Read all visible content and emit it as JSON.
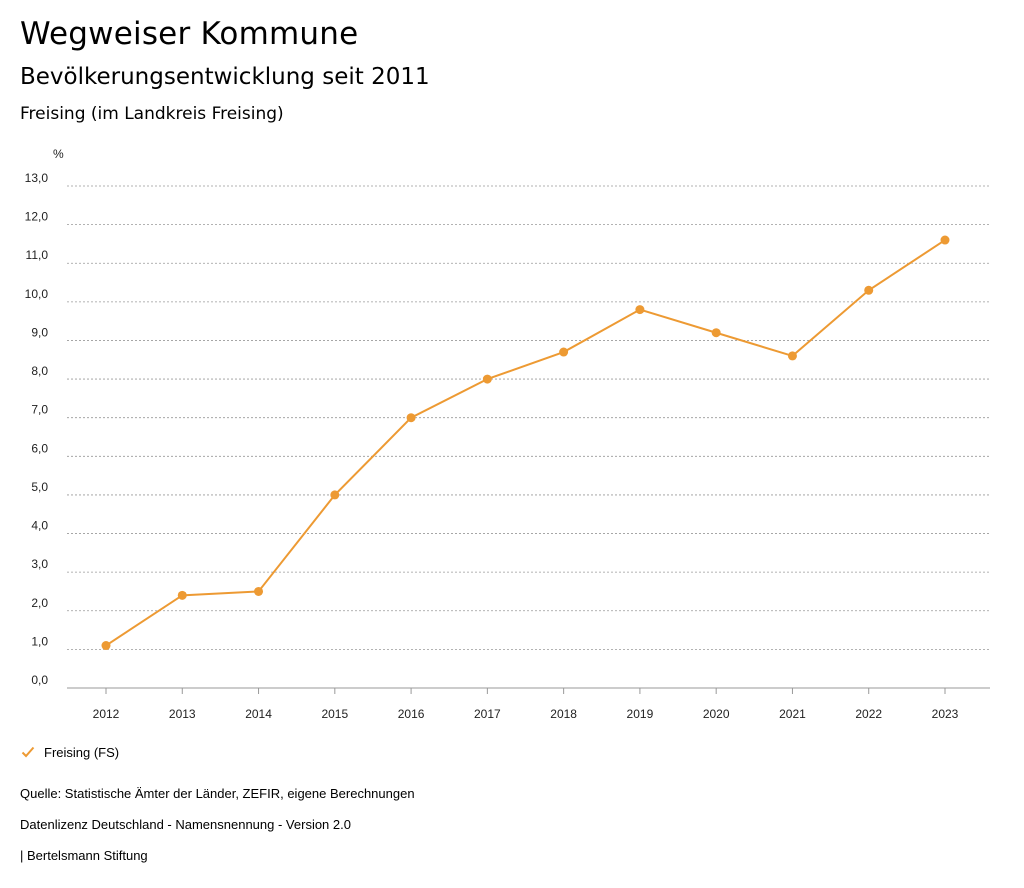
{
  "header": {
    "title": "Wegweiser Kommune",
    "subtitle": "Bevölkerungsentwicklung seit 2011",
    "region": "Freising (im Landkreis Freising)"
  },
  "legend": {
    "label": "Freising (FS)",
    "icon": "check-icon"
  },
  "footer": {
    "source": "Quelle: Statistische Ämter der Länder, ZEFIR, eigene Berechnungen",
    "license": "Datenlizenz Deutschland - Namensnennung - Version 2.0",
    "publisher": "| Bertelsmann Stiftung"
  },
  "colors": {
    "series": "#ED9A33",
    "grid": "#999999",
    "text": "#222222"
  },
  "chart_data": {
    "type": "line",
    "ylabel": "%",
    "xlabel": "",
    "ylim": [
      0,
      13
    ],
    "y_ticks": [
      "0,0",
      "1,0",
      "2,0",
      "3,0",
      "4,0",
      "5,0",
      "6,0",
      "7,0",
      "8,0",
      "9,0",
      "10,0",
      "11,0",
      "12,0",
      "13,0"
    ],
    "categories": [
      "2012",
      "2013",
      "2014",
      "2015",
      "2016",
      "2017",
      "2018",
      "2019",
      "2020",
      "2021",
      "2022",
      "2023"
    ],
    "grid": true,
    "legend_position": "bottom-left",
    "series": [
      {
        "name": "Freising (FS)",
        "values": [
          1.1,
          2.4,
          2.5,
          5.0,
          7.0,
          8.0,
          8.7,
          9.8,
          9.2,
          8.6,
          10.3,
          11.6
        ]
      }
    ]
  }
}
